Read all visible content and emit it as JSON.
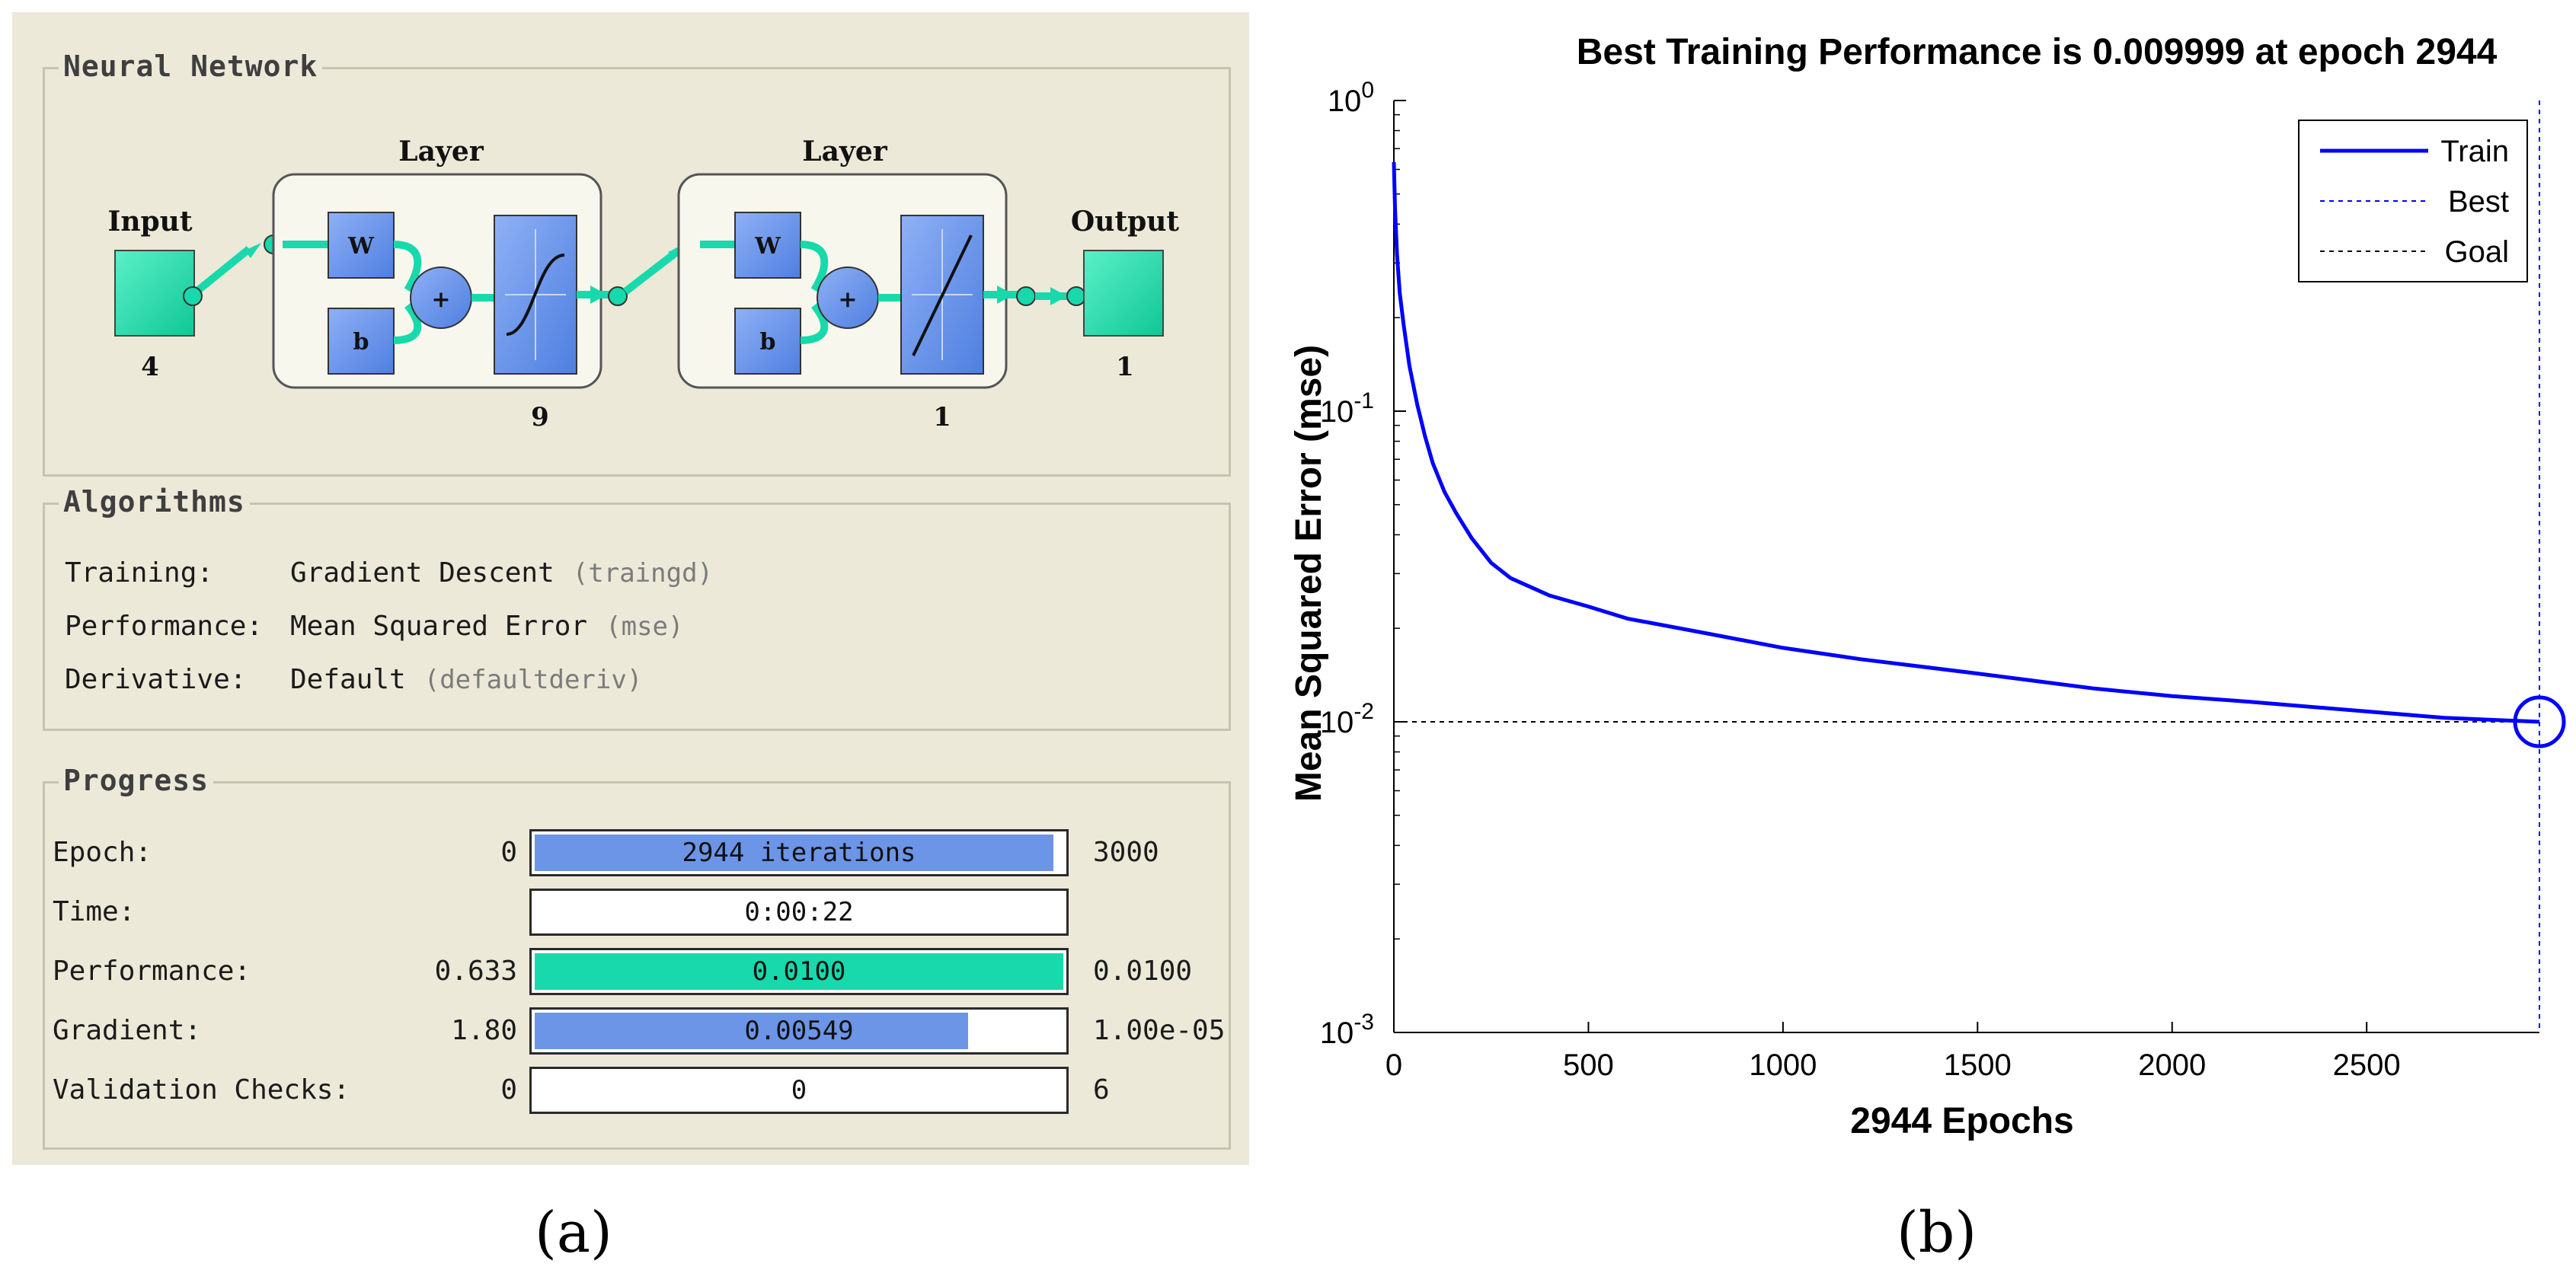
{
  "neural_network": {
    "legend": "Neural Network",
    "input_label": "Input",
    "input_size": "4",
    "output_label": "Output",
    "output_size": "1",
    "layers": [
      {
        "title": "Layer",
        "weight": "W",
        "bias": "b",
        "sum": "+",
        "size": "9",
        "transfer": "tansig"
      },
      {
        "title": "Layer",
        "weight": "W",
        "bias": "b",
        "sum": "+",
        "size": "1",
        "transfer": "purelin"
      }
    ]
  },
  "algorithms": {
    "legend": "Algorithms",
    "rows": [
      {
        "label": "Training:",
        "value": "Gradient Descent",
        "paren": "(traingd)"
      },
      {
        "label": "Performance:",
        "value": "Mean Squared Error",
        "paren": "(mse)"
      },
      {
        "label": "Derivative:",
        "value": "Default",
        "paren": "(defaultderiv)"
      }
    ]
  },
  "progress": {
    "legend": "Progress",
    "rows": [
      {
        "label": "Epoch:",
        "start": "0",
        "bar_text": "2944 iterations",
        "end": "3000",
        "fill": 0.981,
        "color": "#6c95e8"
      },
      {
        "label": "Time:",
        "start": "",
        "bar_text": "0:00:22",
        "end": "",
        "fill": 0,
        "color": "#6c95e8"
      },
      {
        "label": "Performance:",
        "start": "0.633",
        "bar_text": "0.0100",
        "end": "0.0100",
        "fill": 1.0,
        "color": "#17d9ac"
      },
      {
        "label": "Gradient:",
        "start": "1.80",
        "bar_text": "0.00549",
        "end": "1.00e-05",
        "fill": 0.82,
        "color": "#6c95e8"
      },
      {
        "label": "Validation Checks:",
        "start": "0",
        "bar_text": "0",
        "end": "6",
        "fill": 0,
        "color": "#6c95e8"
      }
    ]
  },
  "chart_data": {
    "type": "line",
    "title": "Best Training Performance is 0.009999 at epoch 2944",
    "xlabel": "2944 Epochs",
    "ylabel": "Mean Squared Error  (mse)",
    "xlim": [
      0,
      2944
    ],
    "ylim": [
      0.001,
      1
    ],
    "yscale": "log",
    "x_ticks": [
      0,
      500,
      1000,
      1500,
      2000,
      2500
    ],
    "y_ticks": [
      {
        "value": 1,
        "base": "10",
        "exp": "0"
      },
      {
        "value": 0.1,
        "base": "10",
        "exp": "-1"
      },
      {
        "value": 0.01,
        "base": "10",
        "exp": "-2"
      },
      {
        "value": 0.001,
        "base": "10",
        "exp": "-3"
      }
    ],
    "legend_position": "top-right",
    "series": [
      {
        "name": "Train",
        "color": "#0000ff",
        "x": [
          0,
          3,
          8,
          15,
          25,
          40,
          60,
          80,
          100,
          130,
          160,
          200,
          250,
          300,
          400,
          500,
          600,
          800,
          1000,
          1200,
          1500,
          1800,
          2000,
          2200,
          2500,
          2700,
          2944
        ],
        "y": [
          0.633,
          0.45,
          0.32,
          0.24,
          0.19,
          0.14,
          0.105,
          0.083,
          0.068,
          0.055,
          0.047,
          0.039,
          0.0325,
          0.029,
          0.0255,
          0.0235,
          0.0215,
          0.0193,
          0.0173,
          0.0159,
          0.0143,
          0.0128,
          0.0121,
          0.0116,
          0.0108,
          0.0103,
          0.009999
        ]
      },
      {
        "name": "Best",
        "color": "#0000ff",
        "style": "dotted",
        "x": [
          2944,
          2944
        ],
        "y": [
          0.001,
          1
        ]
      },
      {
        "name": "Goal",
        "color": "#000000",
        "style": "dotted",
        "x": [
          0,
          2944
        ],
        "y": [
          0.01,
          0.01
        ]
      }
    ],
    "best_point": {
      "x": 2944,
      "y": 0.009999
    }
  },
  "captions": {
    "a": "(a)",
    "b": "(b)"
  }
}
